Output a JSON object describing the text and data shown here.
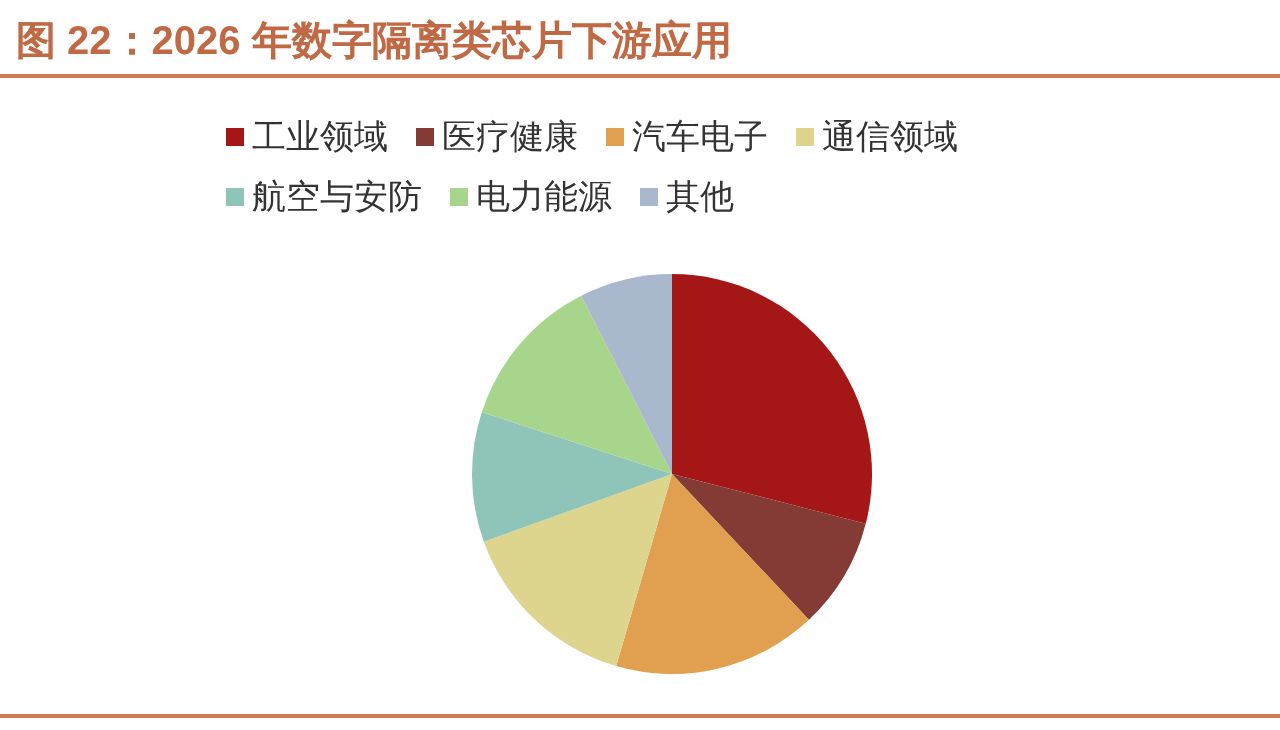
{
  "chart_data": {
    "type": "pie",
    "title": "图 22：2026 年数字隔离类芯片下游应用",
    "categories": [
      "工业领域",
      "医疗健康",
      "汽车电子",
      "通信领域",
      "航空与安防",
      "电力能源",
      "其他"
    ],
    "values": [
      29,
      9,
      16.5,
      15,
      10.5,
      12.5,
      7.5
    ],
    "colors": [
      "#a51616",
      "#843a35",
      "#e0a050",
      "#ddd48e",
      "#8ec5b8",
      "#a8d58c",
      "#a9b8cc"
    ],
    "legend": "top"
  }
}
